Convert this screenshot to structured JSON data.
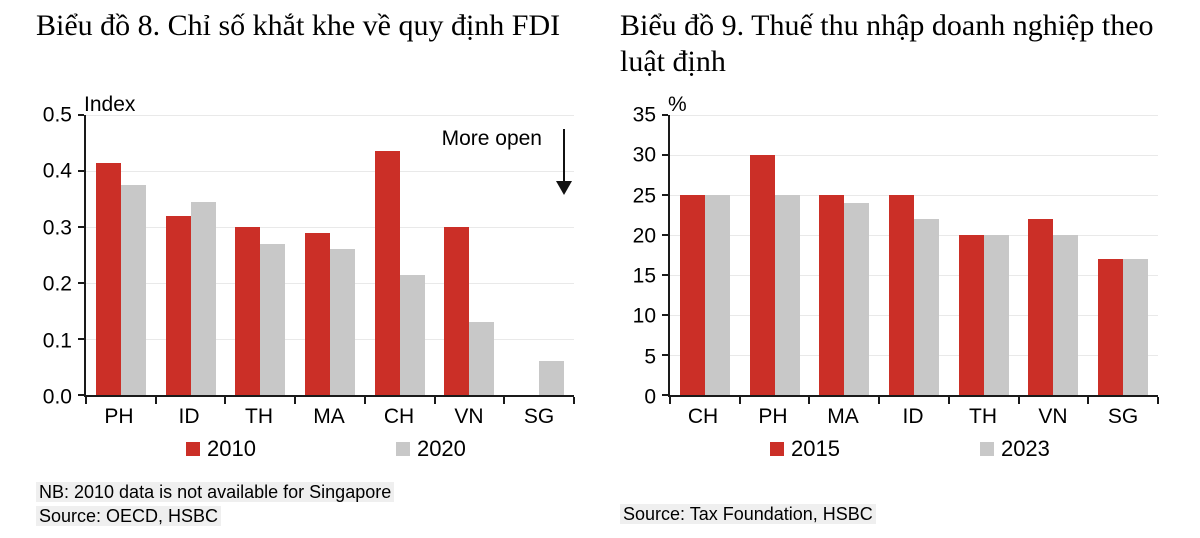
{
  "colors": {
    "bar_red": "#CB2F27",
    "bar_gray": "#C8C8C8",
    "gridline": "#E9E9E9",
    "axis": "#1A1A1A",
    "note_highlight": "#EFEFEF",
    "arrow": "#111111"
  },
  "chart_data": [
    {
      "type": "bar",
      "title": "Biểu đồ 8. Chỉ số khắt khe về quy định FDI",
      "unit": "Index",
      "categories": [
        "PH",
        "ID",
        "TH",
        "MA",
        "CH",
        "VN",
        "SG"
      ],
      "series": [
        {
          "name": "2010",
          "color": "#CB2F27",
          "values": [
            0.415,
            0.32,
            0.3,
            0.29,
            0.435,
            0.3,
            null
          ]
        },
        {
          "name": "2020",
          "color": "#C8C8C8",
          "values": [
            0.375,
            0.345,
            0.27,
            0.26,
            0.215,
            0.13,
            0.06
          ]
        }
      ],
      "ylim": [
        0,
        0.5
      ],
      "yticks": [
        0,
        0.1,
        0.2,
        0.3,
        0.4,
        0.5
      ],
      "ytick_labels": [
        "0.0",
        "0.1",
        "0.2",
        "0.3",
        "0.4",
        "0.5"
      ],
      "grid": true,
      "legend_position": "bottom",
      "annotation": "More open",
      "notes": [
        "NB: 2010 data is not available for Singapore",
        "Source: OECD, HSBC"
      ]
    },
    {
      "type": "bar",
      "title": "Biểu đồ 9. Thuế thu nhập doanh nghiệp theo luật định",
      "unit": "%",
      "categories": [
        "CH",
        "PH",
        "MA",
        "ID",
        "TH",
        "VN",
        "SG"
      ],
      "series": [
        {
          "name": "2015",
          "color": "#CB2F27",
          "values": [
            25,
            30,
            25,
            25,
            20,
            22,
            17
          ]
        },
        {
          "name": "2023",
          "color": "#C8C8C8",
          "values": [
            25,
            25,
            24,
            22,
            20,
            20,
            17
          ]
        }
      ],
      "ylim": [
        0,
        35
      ],
      "yticks": [
        0,
        5,
        10,
        15,
        20,
        25,
        30,
        35
      ],
      "ytick_labels": [
        "0",
        "5",
        "10",
        "15",
        "20",
        "25",
        "30",
        "35"
      ],
      "grid": true,
      "legend_position": "bottom",
      "annotation": null,
      "notes": [
        "Source: Tax Foundation, HSBC"
      ]
    }
  ]
}
